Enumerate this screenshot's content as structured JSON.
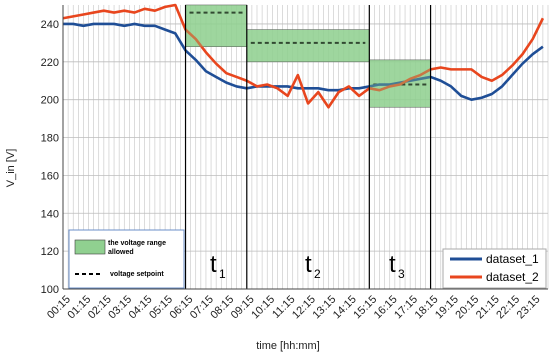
{
  "chart_data": {
    "type": "line",
    "xlabel": "time [hh:mm]",
    "ylabel": "V_in [V]",
    "ylim": [
      100,
      250
    ],
    "yticks": [
      100,
      120,
      140,
      160,
      180,
      200,
      220,
      240
    ],
    "grid": true,
    "x_tick_labels": [
      "00:15",
      "01:15",
      "02:15",
      "03:15",
      "04:15",
      "05:15",
      "06:15",
      "07:15",
      "08:15",
      "09:15",
      "10:15",
      "11:15",
      "12:15",
      "13:15",
      "14:15",
      "15:15",
      "16:15",
      "17:15",
      "18:15",
      "19:15",
      "20:15",
      "21:15",
      "22:15",
      "23:15"
    ],
    "x": [
      "00:15",
      "00:45",
      "01:15",
      "01:45",
      "02:15",
      "02:45",
      "03:15",
      "03:45",
      "04:15",
      "04:45",
      "05:15",
      "05:45",
      "06:15",
      "06:45",
      "07:15",
      "07:45",
      "08:15",
      "08:45",
      "09:15",
      "09:45",
      "10:15",
      "10:45",
      "11:15",
      "11:45",
      "12:15",
      "12:45",
      "13:15",
      "13:45",
      "14:15",
      "14:45",
      "15:15",
      "15:45",
      "16:15",
      "16:45",
      "17:15",
      "17:45",
      "18:15",
      "18:45",
      "19:15",
      "19:45",
      "20:15",
      "20:45",
      "21:15",
      "21:45",
      "22:15",
      "22:45",
      "23:15",
      "23:45"
    ],
    "series": [
      {
        "name": "dataset_1",
        "color": "#1f4e96",
        "values": [
          240,
          240,
          239,
          240,
          240,
          240,
          239,
          240,
          239,
          239,
          237,
          235,
          226,
          221,
          215,
          212,
          209,
          207,
          206,
          207,
          207,
          207,
          207,
          206,
          206,
          206,
          205,
          205,
          206,
          206,
          207,
          208,
          208,
          209,
          210,
          211,
          212,
          210,
          207,
          202,
          200,
          201,
          203,
          207,
          213,
          219,
          224,
          228
        ]
      },
      {
        "name": "dataset_2",
        "color": "#e8461e",
        "values": [
          243,
          244,
          245,
          246,
          247,
          246,
          247,
          246,
          248,
          247,
          249,
          250,
          237,
          232,
          225,
          219,
          214,
          212,
          210,
          207,
          208,
          206,
          202,
          213,
          198,
          204,
          196,
          204,
          207,
          202,
          206,
          205,
          207,
          208,
          211,
          213,
          216,
          217,
          216,
          216,
          216,
          212,
          210,
          213,
          218,
          224,
          232,
          243
        ]
      }
    ],
    "periods": [
      {
        "label": "t",
        "sub": "1",
        "start": "06:15",
        "end": "09:15",
        "setpoint": 246,
        "range": [
          228,
          250
        ]
      },
      {
        "label": "t",
        "sub": "2",
        "start": "09:15",
        "end": "15:15",
        "setpoint": 230,
        "range": [
          220,
          237
        ]
      },
      {
        "label": "t",
        "sub": "3",
        "start": "15:15",
        "end": "18:15",
        "setpoint": 208,
        "range": [
          196,
          221
        ]
      }
    ],
    "legend_placement": "bottom-right",
    "band_legend_placement": "bottom-left"
  },
  "legend": {
    "band_label": "the voltage range allowed",
    "band_label_line1": "the voltage range",
    "band_label_line2": "allowed",
    "setpoint_label": "voltage setpoint",
    "band_color": "#90d090",
    "dataset_1": "dataset_1",
    "dataset_2": "dataset_2"
  }
}
